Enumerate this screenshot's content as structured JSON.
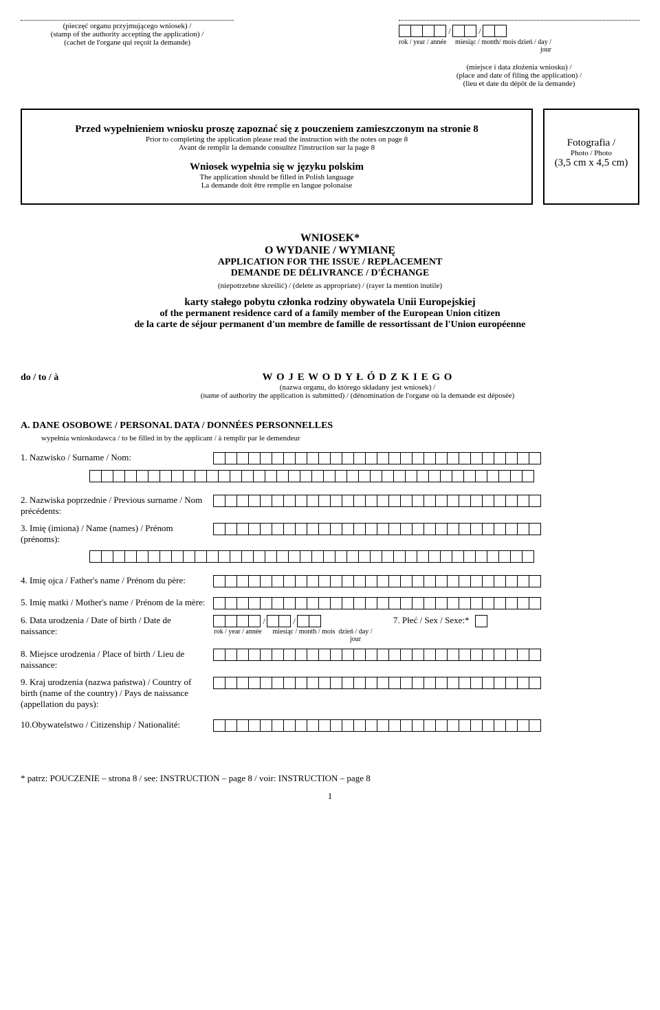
{
  "stamp": {
    "line1": "(pieczęć organu przyjmującego wniosek) /",
    "line2": "(stamp of the authority accepting the application) /",
    "line3": "(cachet de l'organe qui reçoit la demande)"
  },
  "dateHeader": {
    "yearLabel": "rok / year / année",
    "monthLabel": "miesiąc / month/ mois",
    "dayLabel": "dzień / day / jour",
    "sub1": "(miejsce i data złożenia wniosku) /",
    "sub2": "(place and  date of filing the application) /",
    "sub3": "(lieu et date du dépôt de la demande)"
  },
  "instructions": {
    "h1": "Przed wypełnieniem wniosku proszę zapoznać się z pouczeniem zamieszczonym na stronie 8",
    "l1": "Prior to completing the application please read the instruction with the notes on page 8",
    "l2": "Avant de remplir la demande consultez l'instruction sur la page 8",
    "h2": "Wniosek wypełnia się w języku polskim",
    "l3": "The application should be filled in Polish language",
    "l4": "La demande doit être remplie en langue polonaise"
  },
  "photo": {
    "l1": "Fotografia /",
    "l2": "Photo / Photo",
    "l3": "(3,5 cm x 4,5 cm)"
  },
  "title": {
    "t1": "WNIOSEK*",
    "t2": "O WYDANIE / WYMIANĘ",
    "t3": "APPLICATION FOR THE ISSUE / REPLACEMENT",
    "t4": "DEMANDE DE DÉLIVRANCE / D'ÉCHANGE",
    "tnote": "(niepotrzebne skreślić) / (delete as appropriate) / (rayer la mention inutile)",
    "c1": "karty stałego pobytu członka rodziny obywatela Unii Europejskiej",
    "c2": "of the permanent residence card of a family member of the European Union citizen",
    "c3": "de la carte de séjour permanent d'un membre de famille de ressortissant de l'Union européenne"
  },
  "authority": {
    "to": "do / to / à",
    "name": "W O J E W O D Y   Ł Ó D Z K I E G O",
    "s1": "(nazwa organu, do którego składany jest wniosek) /",
    "s2": "(name of authority the application is submitted) / (dénomination de l'organe où la demande est déposée)"
  },
  "sectionA": {
    "header": "A.    DANE OSOBOWE / PERSONAL DATA / DONNÉES PERSONNELLES",
    "sub": "wypełnia wnioskodawca / to be filled in by the applicant / à remplir par le demendeur"
  },
  "fields": {
    "f1": "1.  Nazwisko / Surname / Nom:",
    "f2": "2.  Nazwiska poprzednie / Previous surname / Nom précédents:",
    "f3": "3.  Imię (imiona) / Name (names) / Prénom (prénoms):",
    "f4": "4.  Imię ojca / Father's name / Prénom du père:",
    "f5": "5.  Imię matki / Mother's name / Prénom de la mère:",
    "f6": "6.  Data urodzenia / Date of birth / Date de naissance:",
    "f6year": "rok / year / année",
    "f6month": "miesiąc / month / mois",
    "f6day": "dzień / day / jour",
    "f7": "7.  Płeć / Sex / Sexe:*",
    "f8": "8.  Miejsce urodzenia / Place of birth / Lieu de naissance:",
    "f9": "9.  Kraj urodzenia (nazwa państwa) / Country of birth (name of the country) / Pays de naissance (appellation du pays):",
    "f10": "10.Obywatelstwo / Citizenship / Nationalité:"
  },
  "footer": "* patrz: POUCZENIE – strona 8 / see: INSTRUCTION – page 8 / voir: INSTRUCTION – page 8",
  "pageNum": "1",
  "cellCounts": {
    "headerYear": 4,
    "headerMonth": 2,
    "headerDay": 2,
    "full": 28,
    "fullWide": 40,
    "dobYear": 4,
    "dobMonth": 2,
    "dobDay": 2,
    "sex": 1
  }
}
